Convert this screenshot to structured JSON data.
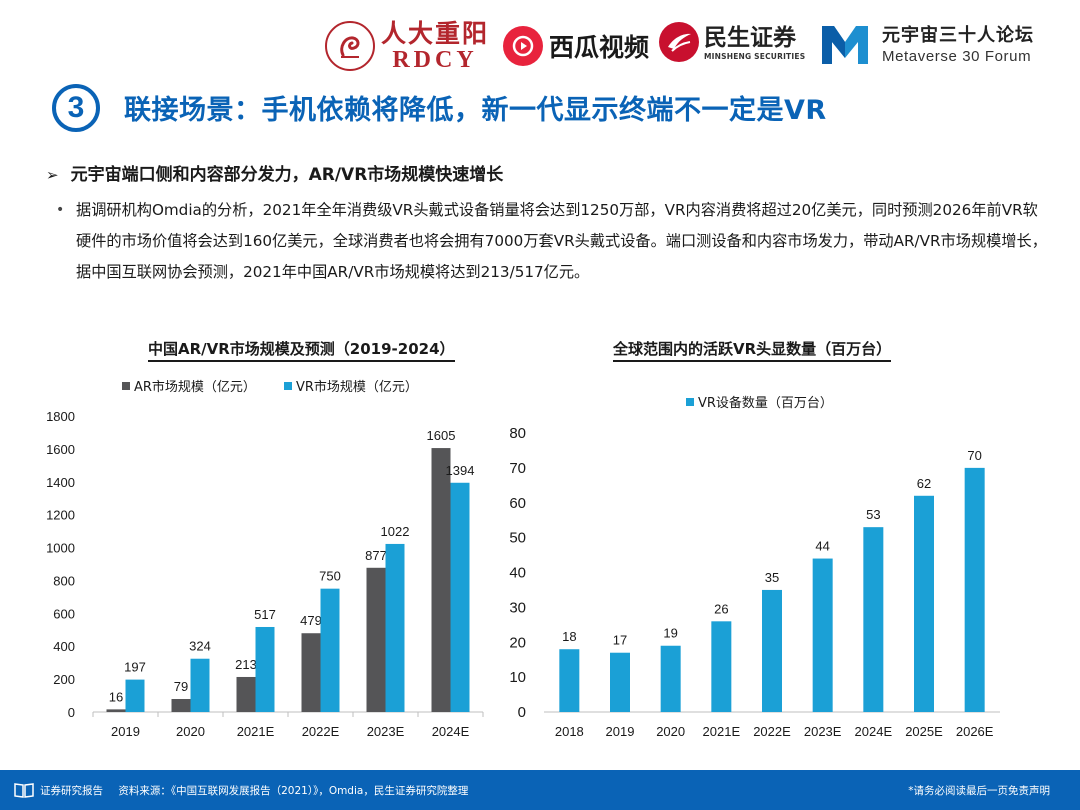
{
  "header": {
    "logos": {
      "rdcy_cn": "人大重阳",
      "rdcy_en": "RDCY",
      "xigua": "西瓜视频",
      "minsheng_cn": "民生证券",
      "minsheng_en": "MINSHENG SECURITIES",
      "forum_cn": "元宇宙三十人论坛",
      "forum_en": "Metaverse 30 Forum"
    }
  },
  "title": {
    "number": "3",
    "text": "联接场景：手机依赖将降低，新一代显示终端不一定是VR"
  },
  "headline": {
    "arrow": "➢",
    "text": "元宇宙端口侧和内容部分发力，AR/VR市场规模快速增长"
  },
  "bullet": {
    "dot": "•",
    "text": "据调研机构Omdia的分析，2021年全年消费级VR头戴式设备销量将会达到1250万部，VR内容消费将超过20亿美元，同时预测2026年前VR软硬件的市场价值将会达到160亿美元，全球消费者也将会拥有7000万套VR头戴式设备。端口测设备和内容市场发力，带动AR/VR市场规模增长，据中国互联网协会预测，2021年中国AR/VR市场规模将达到213/517亿元。"
  },
  "colors": {
    "brand_blue": "#0a63b6",
    "ar_bar": "#555557",
    "vr_bar": "#1ba0d6"
  },
  "chart_data": [
    {
      "type": "bar",
      "title": "中国AR/VR市场规模及预测（2019-2024）",
      "categories": [
        "2019",
        "2020",
        "2021E",
        "2022E",
        "2023E",
        "2024E"
      ],
      "series": [
        {
          "name": "AR市场规模（亿元）",
          "values": [
            16,
            79,
            213,
            479,
            877,
            1605
          ]
        },
        {
          "name": "VR市场规模（亿元）",
          "values": [
            197,
            324,
            517,
            750,
            1022,
            1394
          ]
        }
      ],
      "ylim": [
        0,
        1800
      ],
      "yticks": [
        0,
        200,
        400,
        600,
        800,
        1000,
        1200,
        1400,
        1600,
        1800
      ],
      "legend": "top-left",
      "grid": false
    },
    {
      "type": "bar",
      "title": "全球范围内的活跃VR头显数量（百万台）",
      "categories": [
        "2018",
        "2019",
        "2020",
        "2021E",
        "2022E",
        "2023E",
        "2024E",
        "2025E",
        "2026E"
      ],
      "series": [
        {
          "name": "VR设备数量（百万台）",
          "values": [
            18,
            17,
            19,
            26,
            35,
            44,
            53,
            62,
            70
          ]
        }
      ],
      "ylim": [
        0,
        80
      ],
      "yticks": [
        0,
        10,
        20,
        30,
        40,
        50,
        60,
        70,
        80
      ],
      "legend": "top-center",
      "grid": false
    }
  ],
  "footer": {
    "label": "证券研究报告",
    "source": "资料来源：《中国互联网发展报告（2021）》，Omdia，民生证券研究院整理",
    "disclaimer": "*请务必阅读最后一页免责声明"
  }
}
